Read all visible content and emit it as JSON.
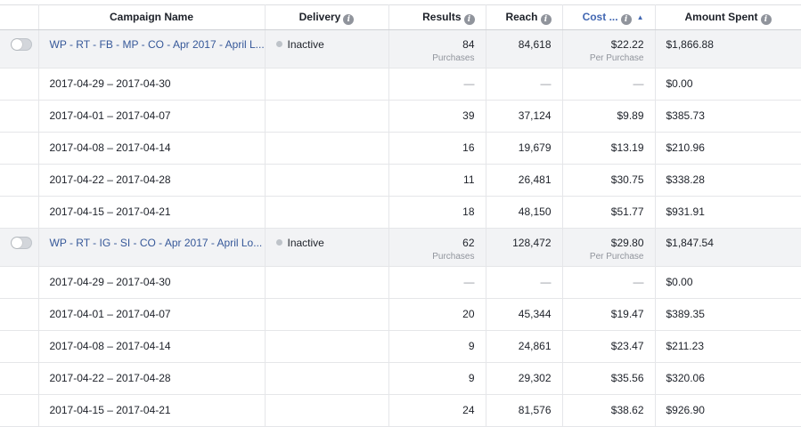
{
  "columns": {
    "name": "Campaign Name",
    "delivery": "Delivery",
    "results": "Results",
    "reach": "Reach",
    "cost": "Cost ...",
    "spent": "Amount Spent"
  },
  "colors": {
    "accent": "#4267b2",
    "link": "#365899",
    "inactive_dot": "#bec3c9"
  },
  "campaigns": [
    {
      "name": "WP - RT - FB - MP - CO - Apr 2017 - April L...",
      "delivery": "Inactive",
      "results": "84",
      "results_label": "Purchases",
      "reach": "84,618",
      "cost": "$22.22",
      "cost_label": "Per Purchase",
      "spent": "$1,866.88",
      "rows": [
        {
          "range": "2017-04-29 – 2017-04-30",
          "results": "—",
          "reach": "—",
          "cost": "—",
          "spent": "$0.00"
        },
        {
          "range": "2017-04-01 – 2017-04-07",
          "results": "39",
          "reach": "37,124",
          "cost": "$9.89",
          "spent": "$385.73"
        },
        {
          "range": "2017-04-08 – 2017-04-14",
          "results": "16",
          "reach": "19,679",
          "cost": "$13.19",
          "spent": "$210.96"
        },
        {
          "range": "2017-04-22 – 2017-04-28",
          "results": "11",
          "reach": "26,481",
          "cost": "$30.75",
          "spent": "$338.28"
        },
        {
          "range": "2017-04-15 – 2017-04-21",
          "results": "18",
          "reach": "48,150",
          "cost": "$51.77",
          "spent": "$931.91"
        }
      ]
    },
    {
      "name": "WP - RT - IG - SI - CO - Apr 2017 - April Lo...",
      "delivery": "Inactive",
      "results": "62",
      "results_label": "Purchases",
      "reach": "128,472",
      "cost": "$29.80",
      "cost_label": "Per Purchase",
      "spent": "$1,847.54",
      "rows": [
        {
          "range": "2017-04-29 – 2017-04-30",
          "results": "—",
          "reach": "—",
          "cost": "—",
          "spent": "$0.00"
        },
        {
          "range": "2017-04-01 – 2017-04-07",
          "results": "20",
          "reach": "45,344",
          "cost": "$19.47",
          "spent": "$389.35"
        },
        {
          "range": "2017-04-08 – 2017-04-14",
          "results": "9",
          "reach": "24,861",
          "cost": "$23.47",
          "spent": "$211.23"
        },
        {
          "range": "2017-04-22 – 2017-04-28",
          "results": "9",
          "reach": "29,302",
          "cost": "$35.56",
          "spent": "$320.06"
        },
        {
          "range": "2017-04-15 – 2017-04-21",
          "results": "24",
          "reach": "81,576",
          "cost": "$38.62",
          "spent": "$926.90"
        }
      ]
    }
  ]
}
